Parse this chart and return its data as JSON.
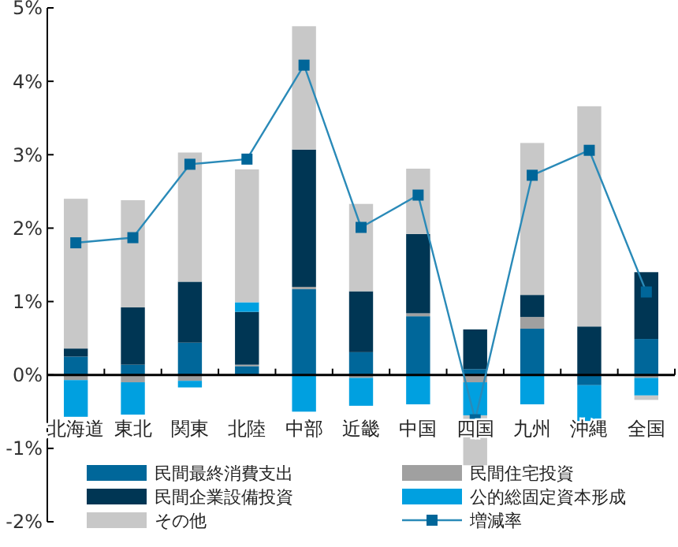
{
  "chart_data": {
    "type": "bar",
    "stacked": true,
    "categories": [
      "北海道",
      "東北",
      "関東",
      "北陸",
      "中部",
      "近畿",
      "中国",
      "四国",
      "九州",
      "沖縄",
      "全国"
    ],
    "series": [
      {
        "name": "民間最終消費支出",
        "color": "#00679a",
        "values": [
          0.25,
          0.14,
          0.44,
          0.12,
          1.17,
          0.31,
          0.8,
          0.08,
          0.63,
          -0.14,
          0.49
        ]
      },
      {
        "name": "民間住宅投資",
        "color": "#a0a0a0",
        "values": [
          -0.07,
          -0.1,
          -0.08,
          0.02,
          0.03,
          -0.04,
          0.04,
          -0.1,
          0.16,
          null,
          -0.04
        ]
      },
      {
        "name": "民間企業設備投資",
        "color": "#003654",
        "values": [
          0.11,
          0.78,
          0.83,
          0.72,
          1.87,
          0.83,
          1.08,
          0.54,
          0.3,
          0.66,
          0.91
        ]
      },
      {
        "name": "公的総固定資本形成",
        "color": "#00a0e0",
        "values": [
          -0.5,
          -0.44,
          -0.09,
          0.13,
          -0.5,
          -0.38,
          -0.4,
          -0.45,
          -0.4,
          -0.49,
          -0.24
        ]
      },
      {
        "name": "その他",
        "color": "#c8c8c8",
        "values": [
          2.04,
          1.46,
          1.76,
          1.81,
          1.68,
          1.19,
          0.89,
          -0.68,
          2.07,
          3.0,
          -0.06
        ]
      },
      {
        "name": "増減率",
        "type": "line",
        "color": "#2a8ab8",
        "marker": "square",
        "values": [
          1.8,
          1.87,
          2.87,
          2.94,
          4.22,
          2.01,
          2.45,
          -0.61,
          2.72,
          3.06,
          1.13
        ]
      }
    ],
    "ylim": [
      -2,
      5
    ],
    "yticks": [
      {
        "value": -2,
        "label": "-2%"
      },
      {
        "value": -1,
        "label": "-1%"
      },
      {
        "value": 0,
        "label": "0%"
      },
      {
        "value": 1,
        "label": "1%"
      },
      {
        "value": 2,
        "label": "2%"
      },
      {
        "value": 3,
        "label": "3%"
      },
      {
        "value": 4,
        "label": "4%"
      },
      {
        "value": 5,
        "label": "5%"
      }
    ],
    "legend": "bottom"
  }
}
